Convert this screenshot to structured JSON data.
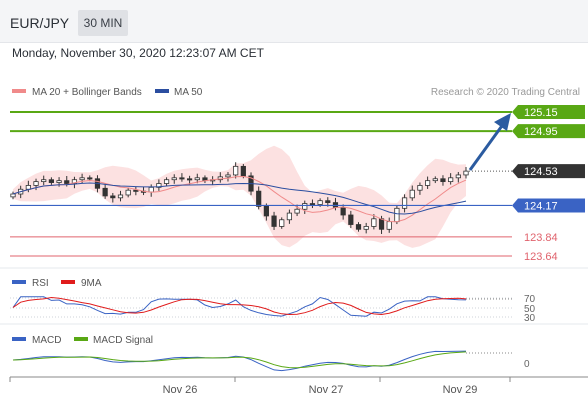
{
  "header": {
    "symbol": "EUR/JPY",
    "timeframe": "30 MIN"
  },
  "datetime": "Monday, November 30, 2020 12:23:07 AM CET",
  "colors": {
    "green": "#59a814",
    "blue": "#3a63c4",
    "red": "#e0636d",
    "dark": "#333333",
    "ma20": "#f08a8a",
    "ma50": "#2b4ea0",
    "band": "#fcdcdc",
    "bull": "#333333"
  },
  "chart_data": {
    "type": "line",
    "main": {
      "legend": [
        {
          "name": "MA 20 + Bollinger Bands",
          "color": "#f08a8a"
        },
        {
          "name": "MA 50",
          "color": "#2b4ea0"
        }
      ],
      "credit": "Research © 2020 Trading Central",
      "last_price": "124.53",
      "levels": [
        {
          "value": "125.15",
          "kind": "resistance"
        },
        {
          "value": "124.95",
          "kind": "resistance"
        },
        {
          "value": "124.17",
          "kind": "pivot"
        },
        {
          "value": "123.84",
          "kind": "support"
        },
        {
          "value": "123.64",
          "kind": "support"
        }
      ],
      "projection": {
        "from": 124.53,
        "to": 125.15
      },
      "ylim": [
        123.6,
        125.2
      ],
      "close_series": [
        124.29,
        124.34,
        124.38,
        124.42,
        124.44,
        124.41,
        124.43,
        124.4,
        124.44,
        124.46,
        124.45,
        124.35,
        124.27,
        124.25,
        124.28,
        124.33,
        124.32,
        124.31,
        124.36,
        124.4,
        124.44,
        124.46,
        124.45,
        124.44,
        124.46,
        124.43,
        124.44,
        124.47,
        124.49,
        124.58,
        124.48,
        124.32,
        124.16,
        124.06,
        123.95,
        124.02,
        124.09,
        124.13,
        124.19,
        124.18,
        124.22,
        124.2,
        124.15,
        124.07,
        123.97,
        123.92,
        123.95,
        124.03,
        123.92,
        124.0,
        124.14,
        124.25,
        124.33,
        124.38,
        124.43,
        124.45,
        124.42,
        124.46,
        124.49,
        124.53
      ]
    },
    "rsi": {
      "legend": [
        {
          "name": "RSI",
          "color": "#3a63c4"
        },
        {
          "name": "9MA",
          "color": "#e01c1c"
        }
      ],
      "ticks": [
        "70",
        "50",
        "30"
      ],
      "ylim": [
        20,
        80
      ]
    },
    "macd": {
      "legend": [
        {
          "name": "MACD",
          "color": "#3a63c4"
        },
        {
          "name": "MACD Signal",
          "color": "#59a814"
        }
      ],
      "ticks": [
        "0"
      ]
    },
    "x_ticks": [
      "Nov 26",
      "Nov 27",
      "Nov 29"
    ]
  }
}
